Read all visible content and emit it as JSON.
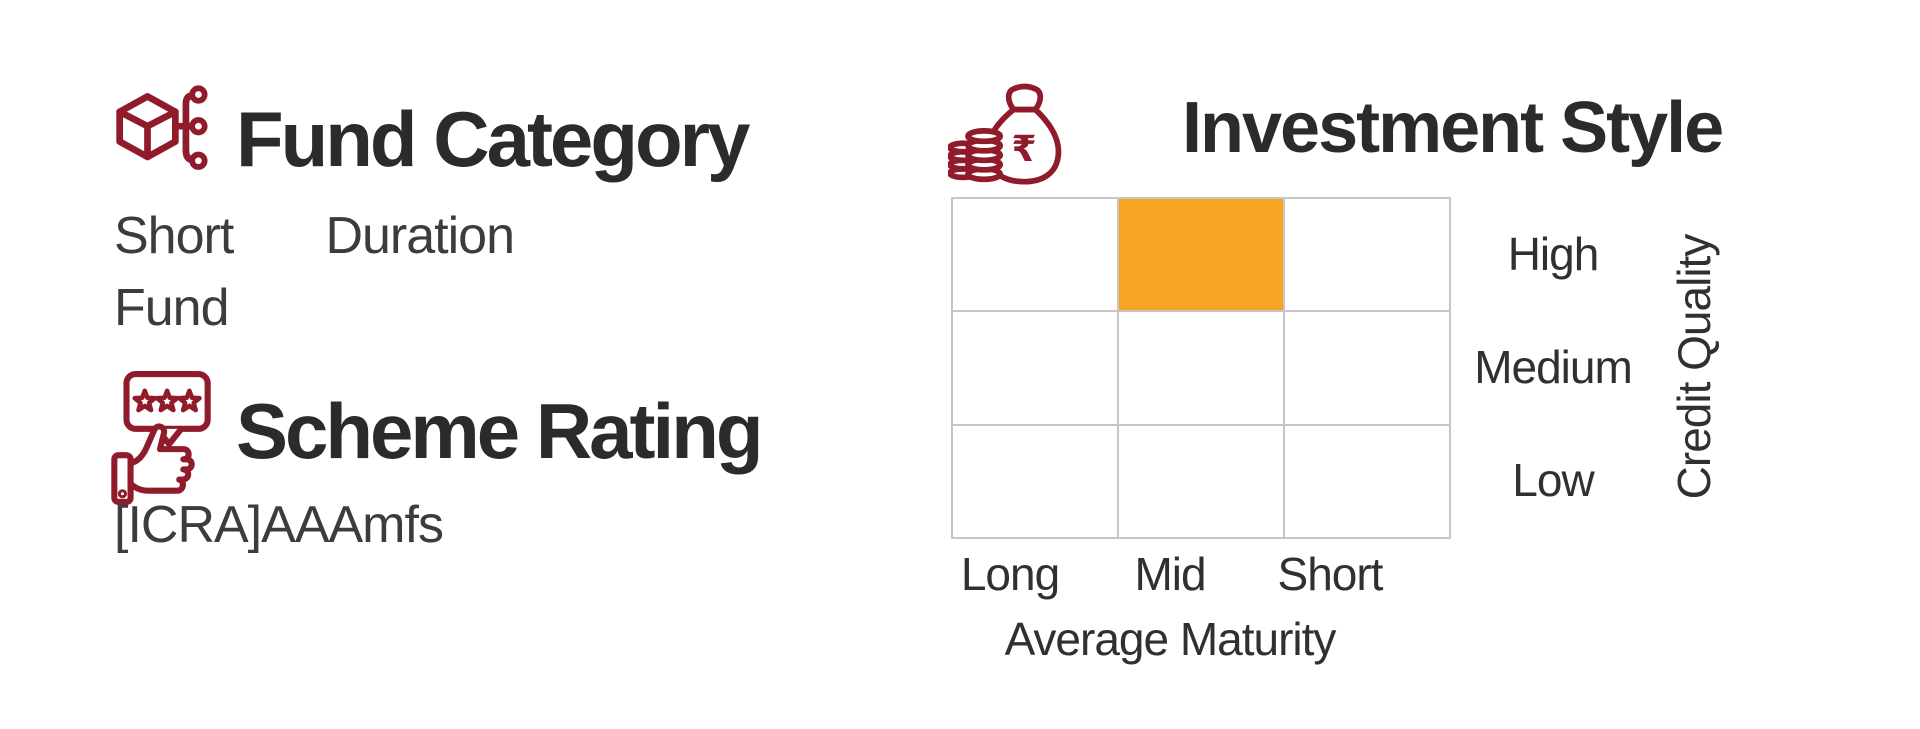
{
  "page": {
    "background": "#ffffff"
  },
  "colors": {
    "accent_red": "#8F1B2B",
    "highlight_orange": "#F7A623",
    "title_text": "#2b2b2b",
    "body_text": "#3c3c3c",
    "grid_line": "#c6c6c6"
  },
  "fund_category": {
    "icon": "cube-network-icon",
    "title": "Fund Category",
    "value": "Short Duration Fund"
  },
  "scheme_rating": {
    "icon": "thumbs-up-stars-icon",
    "title": "Scheme Rating",
    "value": "[ICRA]AAAmfs"
  },
  "investment_style": {
    "icon": "money-bag-coins-icon",
    "title": "Investment Style",
    "rupee_symbol": "₹",
    "grid": {
      "columns": [
        "Long",
        "Mid",
        "Short"
      ],
      "rows": [
        "High",
        "Medium",
        "Low"
      ],
      "x_axis_label": "Average Maturity",
      "y_axis_label": "Credit Quality",
      "highlighted_cell": {
        "row": "High",
        "column": "Mid"
      }
    }
  },
  "chart_data": {
    "type": "heatmap",
    "title": "Investment Style",
    "x_categories": [
      "Long",
      "Mid",
      "Short"
    ],
    "y_categories": [
      "High",
      "Medium",
      "Low"
    ],
    "xlabel": "Average Maturity",
    "ylabel": "Credit Quality",
    "cells": [
      {
        "x": "Mid",
        "y": "High",
        "highlighted": true,
        "color": "#F7A623"
      }
    ],
    "grid": true,
    "legend": false
  }
}
